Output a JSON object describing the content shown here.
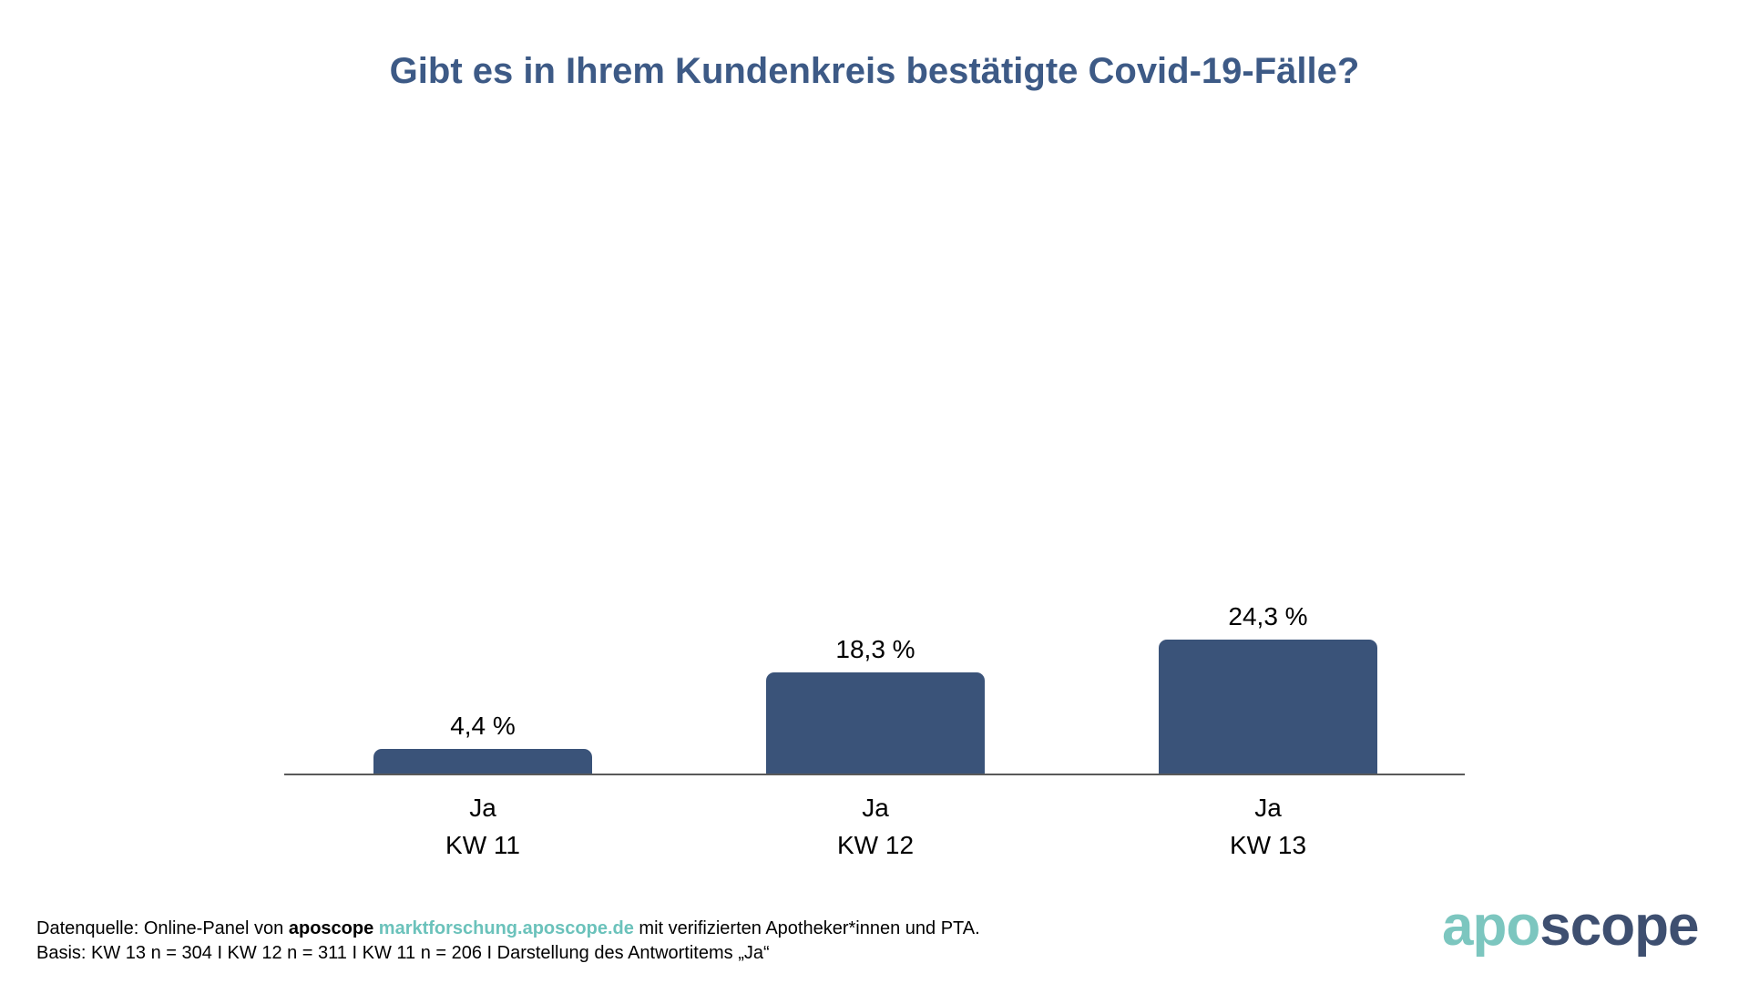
{
  "title": "Gibt es in Ihrem Kundenkreis bestätigte Covid-19-Fälle?",
  "chart_data": {
    "type": "bar",
    "title": "Gibt es in Ihrem Kundenkreis bestätigte Covid-19-Fälle?",
    "categories": [
      "KW 11",
      "KW 12",
      "KW 13"
    ],
    "values": [
      4.4,
      18.3,
      24.3
    ],
    "answer_item": "Ja",
    "xlabel": "",
    "ylabel": "",
    "ylim": [
      0,
      40
    ],
    "grid": false,
    "legend": "none",
    "bar_color": "#3A5379",
    "bars": [
      {
        "category": "KW 11",
        "answer": "Ja",
        "value": 4.4,
        "label": "4,4 %"
      },
      {
        "category": "KW 12",
        "answer": "Ja",
        "value": 18.3,
        "label": "18,3 %"
      },
      {
        "category": "KW 13",
        "answer": "Ja",
        "value": 24.3,
        "label": "24,3 %"
      }
    ]
  },
  "footer": {
    "source_prefix": "Datenquelle: Online-Panel von",
    "source_brand": "aposcope",
    "source_link": "marktforschung.aposcope.de",
    "source_suffix": "mit verifizierten Apotheker*innen und PTA.",
    "basis": "Basis: KW 13 n = 304 I KW 12 n = 311 I KW 11 n = 206 I Darstellung des Antwortitems „Ja“"
  },
  "logo": {
    "part_teal": "apo",
    "part_dark": "scope"
  },
  "colors": {
    "title": "#3D5A86",
    "bar": "#3A5379",
    "axis": "#595959",
    "link": "#6BC2BB",
    "logo_teal": "#7CC6BF",
    "logo_dark": "#3E4F70"
  }
}
